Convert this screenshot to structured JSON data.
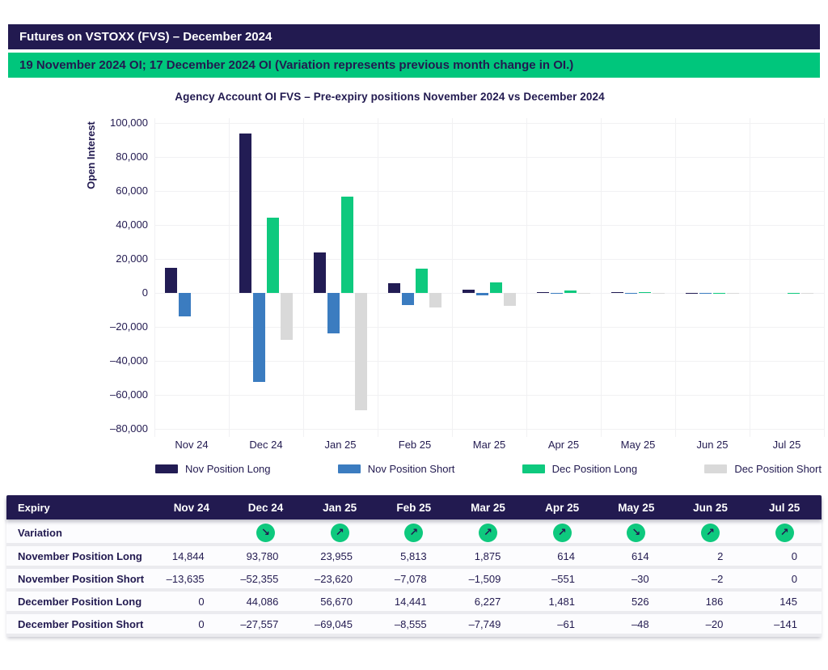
{
  "header": {
    "title": "Futures on VSTOXX (FVS) – December 2024"
  },
  "banner": {
    "text": "19 November 2024 OI; 17 December 2024 OI (Variation represents previous month change in OI.)"
  },
  "chart_data": {
    "type": "bar",
    "title": "Agency Account OI FVS – Pre-expiry positions November 2024 vs December 2024",
    "xlabel": "",
    "ylabel": "Open Interest",
    "ylim": [
      -80000,
      100000
    ],
    "ytick_step": 20000,
    "grid": true,
    "legend_position": "bottom",
    "categories": [
      "Nov 24",
      "Dec 24",
      "Jan 25",
      "Feb 25",
      "Mar 25",
      "Apr 25",
      "May 25",
      "Jun 25",
      "Jul 25"
    ],
    "series": [
      {
        "name": "Nov Position Long",
        "color": "#221C54",
        "values": [
          14844,
          93780,
          23955,
          5813,
          1875,
          614,
          614,
          2,
          0
        ]
      },
      {
        "name": "Nov Position Short",
        "color": "#3B7CC0",
        "values": [
          -13635,
          -52355,
          -23620,
          -7078,
          -1509,
          -551,
          -30,
          -2,
          0
        ]
      },
      {
        "name": "Dec Position Long",
        "color": "#0EC97E",
        "values": [
          0,
          44086,
          56670,
          14441,
          6227,
          1481,
          526,
          186,
          145
        ]
      },
      {
        "name": "Dec Position Short",
        "color": "#D9D9D9",
        "values": [
          0,
          -27557,
          -69045,
          -8555,
          -7749,
          -61,
          -48,
          -20,
          -141
        ]
      }
    ]
  },
  "table": {
    "columns": [
      "Expiry",
      "Nov 24",
      "Dec 24",
      "Jan 25",
      "Feb 25",
      "Mar 25",
      "Apr 25",
      "May 25",
      "Jun 25",
      "Jul 25"
    ],
    "variation": {
      "label": "Variation",
      "arrows": [
        "",
        "down",
        "up",
        "up",
        "up",
        "up",
        "down",
        "up",
        "up"
      ]
    },
    "rows": [
      {
        "label": "November Position Long",
        "values": [
          "14,844",
          "93,780",
          "23,955",
          "5,813",
          "1,875",
          "614",
          "614",
          "2",
          "0"
        ]
      },
      {
        "label": "November Position Short",
        "values": [
          "–13,635",
          "–52,355",
          "–23,620",
          "–7,078",
          "–1,509",
          "–551",
          "–30",
          "–2",
          "0"
        ]
      },
      {
        "label": "December Position Long",
        "values": [
          "0",
          "44,086",
          "56,670",
          "14,441",
          "6,227",
          "1,481",
          "526",
          "186",
          "145"
        ]
      },
      {
        "label": "December Position Short",
        "values": [
          "0",
          "–27,557",
          "–69,045",
          "–8,555",
          "–7,749",
          "–61",
          "–48",
          "–20",
          "–141"
        ]
      }
    ]
  },
  "icons": {
    "up": "↗",
    "down": "↘"
  },
  "colors": {
    "navy": "#221A50",
    "banner_green": "#00C67C",
    "icon_green": "#0EC97E",
    "gridline": "#F1F1F3",
    "row_separator": "#EBEBEF"
  }
}
